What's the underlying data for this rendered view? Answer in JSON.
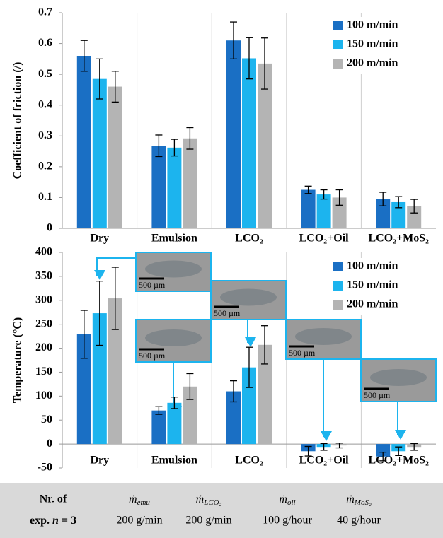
{
  "chart_data": [
    {
      "type": "bar",
      "y_label": "Coefficient of friction (/)",
      "categories": [
        "Dry",
        "Emulsion",
        "LCO₂",
        "LCO₂+Oil",
        "LCO₂+MoS₂"
      ],
      "series": [
        {
          "name": "100 m/min",
          "color": "#1a6fc4",
          "values": [
            0.56,
            0.268,
            0.61,
            0.125,
            0.095
          ],
          "errors": [
            0.05,
            0.035,
            0.06,
            0.012,
            0.022
          ]
        },
        {
          "name": "150 m/min",
          "color": "#1cb4ee",
          "values": [
            0.485,
            0.262,
            0.552,
            0.11,
            0.085
          ],
          "errors": [
            0.065,
            0.027,
            0.067,
            0.015,
            0.018
          ]
        },
        {
          "name": "200 m/min",
          "color": "#b4b4b4",
          "values": [
            0.46,
            0.292,
            0.535,
            0.1,
            0.072
          ],
          "errors": [
            0.05,
            0.035,
            0.083,
            0.025,
            0.022
          ]
        }
      ],
      "ylim": [
        0,
        0.7
      ],
      "yticks": [
        0,
        0.1,
        0.2,
        0.3,
        0.4,
        0.5,
        0.6,
        0.7
      ],
      "legend": "upper right"
    },
    {
      "type": "bar",
      "y_label": "Temperature (°C)",
      "categories": [
        "Dry",
        "Emulsion",
        "LCO₂",
        "LCO₂+Oil",
        "LCO₂+MoS₂"
      ],
      "series": [
        {
          "name": "100 m/min",
          "color": "#1a6fc4",
          "values": [
            229,
            70,
            110,
            -15,
            -26
          ],
          "errors": [
            50,
            8,
            22,
            10,
            9
          ]
        },
        {
          "name": "150 m/min",
          "color": "#1cb4ee",
          "values": [
            273,
            86,
            160,
            -6,
            -15
          ],
          "errors": [
            67,
            12,
            42,
            7,
            9
          ]
        },
        {
          "name": "200 m/min",
          "color": "#b4b4b4",
          "values": [
            304,
            120,
            207,
            -3,
            -6
          ],
          "errors": [
            65,
            27,
            40,
            5,
            7
          ]
        }
      ],
      "ylim": [
        -50,
        400
      ],
      "yticks": [
        -50,
        0,
        50,
        100,
        150,
        200,
        250,
        300,
        350,
        400
      ],
      "legend": "upper right",
      "annotations": [
        "500 µm",
        "500 µm",
        "500 µm",
        "500 µm",
        "500 µm"
      ]
    }
  ],
  "table": {
    "header": [
      "Nr. of",
      "exp. ",
      "n",
      " = 3"
    ],
    "columns": [
      {
        "symbol": "ṁ",
        "subscript": "emu",
        "value": "200 g/min"
      },
      {
        "symbol": "ṁ",
        "subscript": "LCO₂",
        "value": "200 g/min"
      },
      {
        "symbol": "ṁ",
        "subscript": "oil",
        "value": "100 g/hour"
      },
      {
        "symbol": "ṁ",
        "subscript": "MoS₂",
        "value": "40 g/hour"
      }
    ]
  }
}
